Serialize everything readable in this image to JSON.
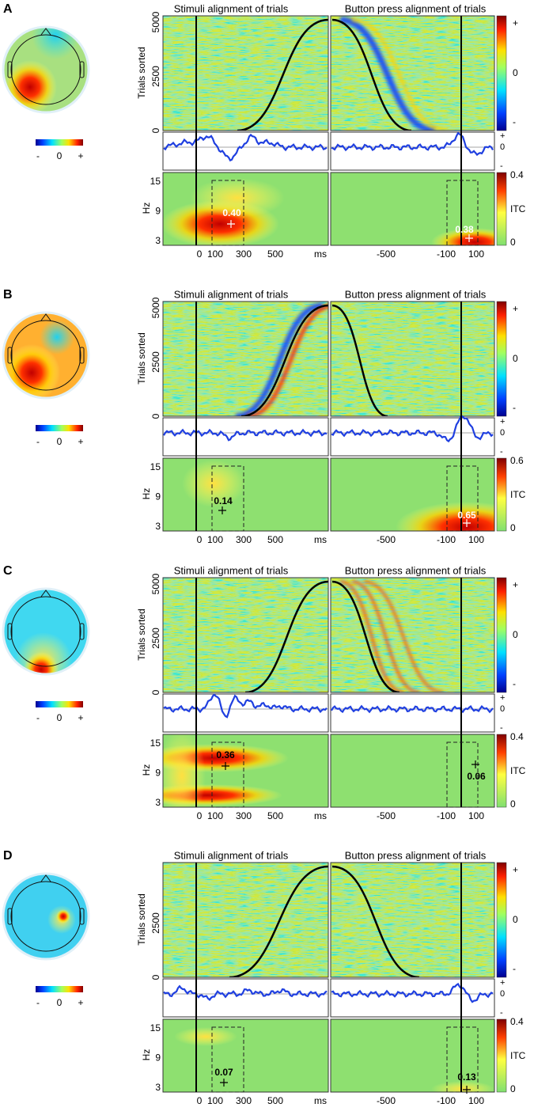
{
  "figure": {
    "panels": [
      {
        "label": "A",
        "titles": [
          "Stimuli alignment of trials",
          "Button press alignment of trials"
        ],
        "y_axis_label": "Trials sorted",
        "trial_ticks": [
          "5000",
          "2500",
          "0"
        ],
        "erp_ticks": [
          "+",
          "0",
          "-"
        ],
        "raster_colorbar": [
          "+",
          "0",
          "-"
        ],
        "topo_colorbar": [
          "-",
          "0",
          "+"
        ],
        "hz_label": "Hz",
        "hz_ticks": [
          "15",
          "9",
          "3"
        ],
        "itc_label": "ITC",
        "itc_ticks": [
          "0.4",
          "0"
        ],
        "x_ticks_left": [
          "0",
          "100",
          "300",
          "500"
        ],
        "x_unit": "ms",
        "x_ticks_right": [
          "-500",
          "-100",
          "100"
        ],
        "itc_peaks": [
          "0.40",
          "0.38"
        ]
      },
      {
        "label": "B",
        "titles": [
          "Stimuli alignment of trials",
          "Button press alignment of trials"
        ],
        "y_axis_label": "Trials sorted",
        "trial_ticks": [
          "5000",
          "2500",
          "0"
        ],
        "erp_ticks": [
          "+",
          "0",
          "-"
        ],
        "raster_colorbar": [
          "+",
          "0",
          "-"
        ],
        "topo_colorbar": [
          "-",
          "0",
          "+"
        ],
        "hz_label": "Hz",
        "hz_ticks": [
          "15",
          "9",
          "3"
        ],
        "itc_label": "ITC",
        "itc_ticks": [
          "0.6",
          "0"
        ],
        "x_ticks_left": [
          "0",
          "100",
          "300",
          "500"
        ],
        "x_unit": "ms",
        "x_ticks_right": [
          "-500",
          "-100",
          "100"
        ],
        "itc_peaks": [
          "0.14",
          "0.65"
        ]
      },
      {
        "label": "C",
        "titles": [
          "Stimuli alignment of trials",
          "Button press alignment of trials"
        ],
        "y_axis_label": "Trials sorted",
        "trial_ticks": [
          "5000",
          "2500",
          "0"
        ],
        "erp_ticks": [
          "+",
          "0",
          "-"
        ],
        "raster_colorbar": [
          "+",
          "0",
          "-"
        ],
        "topo_colorbar": [
          "-",
          "0",
          "+"
        ],
        "hz_label": "Hz",
        "hz_ticks": [
          "15",
          "9",
          "3"
        ],
        "itc_label": "ITC",
        "itc_ticks": [
          "0.4",
          "0"
        ],
        "x_ticks_left": [
          "0",
          "100",
          "300",
          "500"
        ],
        "x_unit": "ms",
        "x_ticks_right": [
          "-500",
          "-100",
          "100"
        ],
        "itc_peaks": [
          "0.36",
          "0.06"
        ]
      },
      {
        "label": "D",
        "titles": [
          "Stimuli alignment of trials",
          "Button press alignment of trials"
        ],
        "y_axis_label": "Trials sorted",
        "trial_ticks": [
          "2500",
          "0"
        ],
        "erp_ticks": [
          "+",
          "0",
          "-"
        ],
        "raster_colorbar": [
          "+",
          "0",
          "-"
        ],
        "topo_colorbar": [
          "-",
          "0",
          "+"
        ],
        "hz_label": "Hz",
        "hz_ticks": [
          "15",
          "9",
          "3"
        ],
        "itc_label": "ITC",
        "itc_ticks": [
          "0.4",
          "0"
        ],
        "x_ticks_left": [
          "0",
          "100",
          "300",
          "500"
        ],
        "x_unit": "ms",
        "x_ticks_right": [
          "-500",
          "-100",
          "100"
        ],
        "itc_peaks": [
          "0.07",
          "0.13"
        ]
      }
    ]
  }
}
